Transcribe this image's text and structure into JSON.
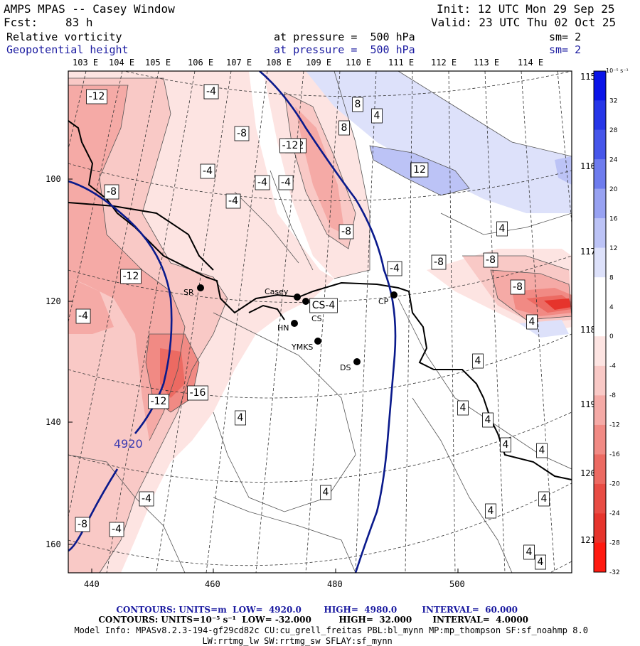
{
  "header": {
    "title": "AMPS MPAS -- Casey Window",
    "init": "Init: 12 UTC Mon 29 Sep 25",
    "fcst_label": "Fcst:",
    "fcst_value": "83 h",
    "valid": "Valid: 23 UTC Thu 02 Oct 25",
    "field1_name": "Relative vorticity",
    "field1_level": "at pressure =  500 hPa",
    "field1_sm": "sm= 2",
    "field2_name": "Geopotential height",
    "field2_level": "at pressure =  500 hPa",
    "field2_sm": "sm= 2"
  },
  "colors": {
    "navy": "#1a1aa0",
    "contour_height": "#0a1a8c",
    "red_strong": "#e8362e",
    "blue_strong": "#2a3ee0"
  },
  "map": {
    "lon_labels": [
      "103 E",
      "104 E",
      "105 E",
      "106 E",
      "107 E",
      "108 E",
      "109 E",
      "110 E",
      "111 E",
      "112 E",
      "113 E",
      "114 E"
    ],
    "lat_labels_right": [
      "115 E",
      "116 E",
      "117 E",
      "118 E",
      "119 E",
      "120 E",
      "121 E"
    ],
    "x_ticks": [
      "440",
      "460",
      "480",
      "500"
    ],
    "y_ticks": [
      "100",
      "120",
      "140",
      "160"
    ],
    "stations": [
      "SR",
      "Casey",
      "CS",
      "CP",
      "HN",
      "YMKS",
      "DS"
    ],
    "height_contour_label": "4920",
    "vorticity_labels": [
      "-12",
      "-4",
      "-4",
      "8",
      "4",
      "8",
      "-8",
      "-12",
      "-4",
      "-4",
      "-4",
      "4",
      "-4",
      "12",
      "-8",
      "-8",
      "4",
      "-12",
      "-4",
      "-8",
      "-8",
      "-4",
      "-8",
      "-12",
      "CS-4",
      "4",
      "-16",
      "-12",
      "4",
      "4",
      "4",
      "4",
      "4",
      "4",
      "4",
      "-4",
      "4",
      "4",
      "-8",
      "-4",
      "4",
      "4"
    ]
  },
  "colorbar": {
    "units": "10⁻⁵ s⁻¹",
    "ticks": [
      "32",
      "28",
      "24",
      "20",
      "16",
      "12",
      "8",
      "4",
      "0",
      "-4",
      "-8",
      "-12",
      "-16",
      "-20",
      "-24",
      "-28",
      "-32"
    ],
    "colors": [
      "#0a14e8",
      "#2636e8",
      "#4656ea",
      "#6e7cee",
      "#98a2f2",
      "#bcc3f6",
      "#dde1fa",
      "#ffffff",
      "#ffffff",
      "#fde4e2",
      "#f9c9c6",
      "#f5aaa6",
      "#f18a84",
      "#ec6a62",
      "#e84c44",
      "#e6342c",
      "#ff1a10"
    ]
  },
  "footer": {
    "line1_left": "CONTOURS: UNITS=m  LOW=  4920.0",
    "line1_mid": "HIGH=  4980.0",
    "line1_right": "INTERVAL=  60.000",
    "line2_left": "CONTOURS: UNITS=10⁻⁵ s⁻¹  LOW= -32.000",
    "line2_mid": "HIGH=  32.000",
    "line2_right": "INTERVAL=  4.0000",
    "model_info": "Model Info: MPASv8.2.3-194-gf29cd82c CU:cu_grell_freitas PBL:bl_mynn MP:mp_thompson SF:sf_noahmp 8.0",
    "model_info2": "LW:rrtmg_lw SW:rrtmg_sw SFLAY:sf_mynn"
  }
}
